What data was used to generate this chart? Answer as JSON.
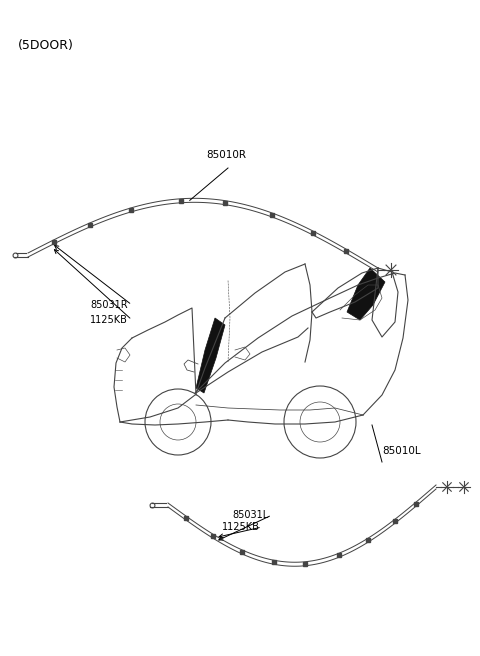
{
  "title": "(5DOOR)",
  "bg_color": "#ffffff",
  "text_color": "#000000",
  "label_85010R": "85010R",
  "label_85010L": "85010L",
  "label_85031R": "85031R",
  "label_85031L": "85031L",
  "label_1125KB_top": "1125KB",
  "label_1125KB_bot": "1125KB",
  "fig_width": 4.8,
  "fig_height": 6.56,
  "dpi": 100
}
